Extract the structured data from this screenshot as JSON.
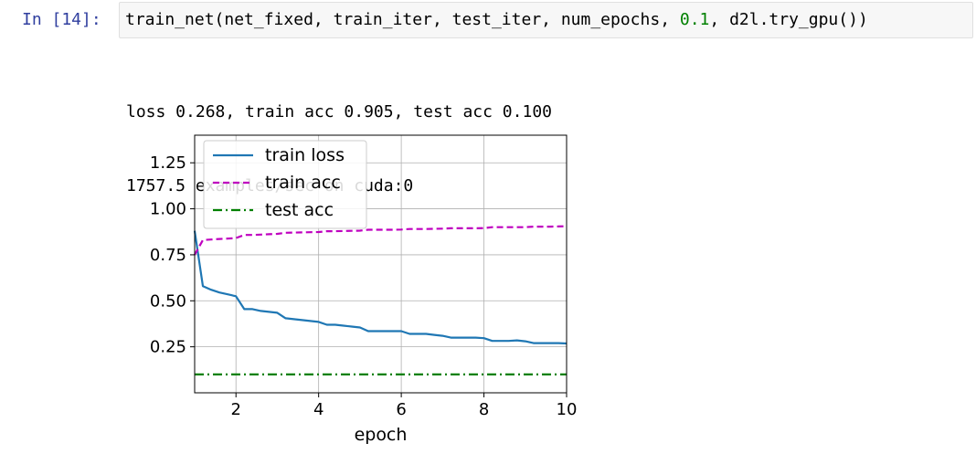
{
  "cell": {
    "prompt": "In [14]:",
    "code": {
      "before": "train_net(net_fixed, train_iter, test_iter, num_epochs, ",
      "number": "0.1",
      "after": ", d2l.try_gpu())"
    },
    "output_lines": [
      "loss 0.268, train acc 0.905, test acc 0.100",
      "1757.5 examples/sec on cuda:0"
    ]
  },
  "chart_data": {
    "type": "line",
    "xlabel": "epoch",
    "ylabel": "",
    "xlim": [
      1,
      10
    ],
    "ylim": [
      0,
      1.4
    ],
    "xticks": [
      2,
      4,
      6,
      8,
      10
    ],
    "yticks": [
      0.25,
      0.5,
      0.75,
      1.0,
      1.25
    ],
    "xtick_labels": [
      "2",
      "4",
      "6",
      "8",
      "10"
    ],
    "ytick_labels": [
      "0.25",
      "0.50",
      "0.75",
      "1.00",
      "1.25"
    ],
    "grid": true,
    "legend_position": "top-left",
    "series": [
      {
        "name": "train loss",
        "color": "#1f77b4",
        "style": "solid",
        "x": [
          1.0,
          1.2,
          1.4,
          1.6,
          1.8,
          2.0,
          2.2,
          2.4,
          2.6,
          2.8,
          3.0,
          3.2,
          3.4,
          3.6,
          3.8,
          4.0,
          4.2,
          4.4,
          4.6,
          4.8,
          5.0,
          5.2,
          5.4,
          5.6,
          5.8,
          6.0,
          6.2,
          6.4,
          6.6,
          6.8,
          7.0,
          7.2,
          7.4,
          7.6,
          7.8,
          8.0,
          8.2,
          8.4,
          8.6,
          8.8,
          9.0,
          9.2,
          9.4,
          9.6,
          9.8,
          10.0
        ],
        "y": [
          0.88,
          0.58,
          0.56,
          0.545,
          0.535,
          0.525,
          0.455,
          0.455,
          0.445,
          0.44,
          0.435,
          0.405,
          0.4,
          0.395,
          0.39,
          0.385,
          0.37,
          0.37,
          0.365,
          0.36,
          0.355,
          0.335,
          0.335,
          0.335,
          0.335,
          0.335,
          0.32,
          0.32,
          0.32,
          0.315,
          0.31,
          0.3,
          0.3,
          0.3,
          0.3,
          0.297,
          0.282,
          0.282,
          0.282,
          0.285,
          0.28,
          0.27,
          0.27,
          0.27,
          0.27,
          0.268
        ]
      },
      {
        "name": "train acc",
        "color": "#bf00bf",
        "style": "dashed",
        "x": [
          1.0,
          1.2,
          1.4,
          1.6,
          1.8,
          2.0,
          2.2,
          2.4,
          2.6,
          2.8,
          3.0,
          3.2,
          3.4,
          3.6,
          3.8,
          4.0,
          4.2,
          4.4,
          4.6,
          4.8,
          5.0,
          5.2,
          5.4,
          5.6,
          5.8,
          6.0,
          6.2,
          6.4,
          6.6,
          6.8,
          7.0,
          7.2,
          7.4,
          7.6,
          7.8,
          8.0,
          8.2,
          8.4,
          8.6,
          8.8,
          9.0,
          9.2,
          9.4,
          9.6,
          9.8,
          10.0
        ],
        "y": [
          0.75,
          0.83,
          0.833,
          0.836,
          0.838,
          0.841,
          0.858,
          0.858,
          0.86,
          0.862,
          0.864,
          0.87,
          0.871,
          0.872,
          0.873,
          0.874,
          0.878,
          0.878,
          0.879,
          0.88,
          0.881,
          0.886,
          0.886,
          0.886,
          0.886,
          0.887,
          0.89,
          0.89,
          0.89,
          0.891,
          0.892,
          0.894,
          0.894,
          0.894,
          0.894,
          0.895,
          0.9,
          0.9,
          0.9,
          0.9,
          0.9,
          0.903,
          0.903,
          0.903,
          0.904,
          0.905
        ]
      },
      {
        "name": "test acc",
        "color": "#008000",
        "style": "dashdot",
        "x": [
          1.0,
          2.0,
          3.0,
          4.0,
          5.0,
          6.0,
          7.0,
          8.0,
          9.0,
          10.0
        ],
        "y": [
          0.1,
          0.1,
          0.1,
          0.1,
          0.1,
          0.1,
          0.1,
          0.1,
          0.1,
          0.1
        ]
      }
    ]
  }
}
